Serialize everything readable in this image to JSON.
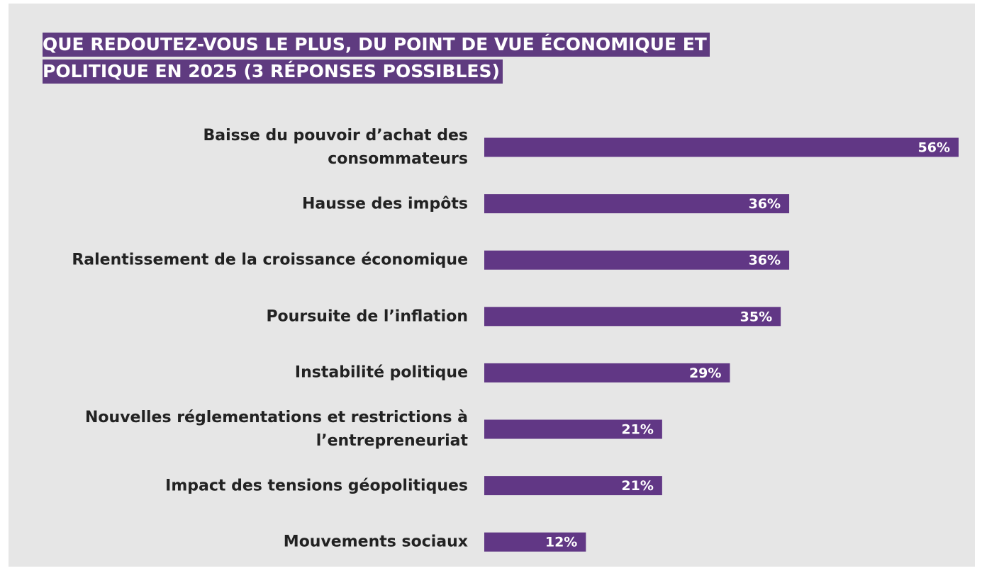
{
  "chart_data": {
    "type": "bar",
    "orientation": "horizontal",
    "title": "QUE REDOUTEZ-VOUS LE PLUS, DU POINT DE VUE ÉCONOMIQUE ET POLITIQUE EN 2025 (3 RÉPONSES POSSIBLES)",
    "categories": [
      "Baisse du pouvoir d’achat des\nconsommateurs",
      "Hausse des impôts",
      "Ralentissement de la croissance économique",
      "Poursuite de l’inflation",
      "Instabilité politique",
      "Nouvelles réglementations et restrictions à\nl’entrepreneuriat",
      "Impact des tensions géopolitiques",
      "Mouvements sociaux"
    ],
    "values": [
      56,
      36,
      36,
      35,
      29,
      21,
      21,
      12
    ],
    "value_labels": [
      "56%",
      "36%",
      "36%",
      "35%",
      "29%",
      "21%",
      "21%",
      "12%"
    ],
    "color": "#613785"
  }
}
